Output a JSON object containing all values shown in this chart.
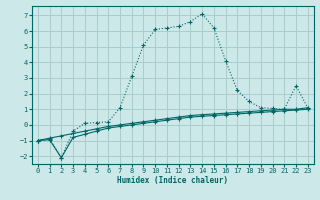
{
  "xlabel": "Humidex (Indice chaleur)",
  "background_color": "#cce8e8",
  "grid_color": "#aacccc",
  "line_color": "#006666",
  "xlim": [
    -0.5,
    23.5
  ],
  "ylim": [
    -2.5,
    7.6
  ],
  "xticks": [
    0,
    1,
    2,
    3,
    4,
    5,
    6,
    7,
    8,
    9,
    10,
    11,
    12,
    13,
    14,
    15,
    16,
    17,
    18,
    19,
    20,
    21,
    22,
    23
  ],
  "yticks": [
    -2,
    -1,
    0,
    1,
    2,
    3,
    4,
    5,
    6,
    7
  ],
  "line1_x": [
    0,
    1,
    2,
    3,
    4,
    5,
    6,
    7,
    8,
    9,
    10,
    11,
    12,
    13,
    14,
    15,
    16,
    17,
    18,
    19,
    20,
    21,
    22,
    23
  ],
  "line1_y": [
    -1.0,
    -0.9,
    -2.1,
    -0.4,
    0.1,
    0.15,
    0.2,
    1.1,
    3.1,
    5.1,
    6.1,
    6.2,
    6.3,
    6.6,
    7.1,
    6.2,
    4.1,
    2.2,
    1.5,
    1.1,
    1.05,
    1.0,
    2.5,
    1.1
  ],
  "line2_x": [
    0,
    1,
    2,
    3,
    4,
    5,
    6,
    7,
    8,
    9,
    10,
    11,
    12,
    13,
    14,
    15,
    16,
    17,
    18,
    19,
    20,
    21,
    22,
    23
  ],
  "line2_y": [
    -1.0,
    -0.85,
    -0.7,
    -0.55,
    -0.4,
    -0.25,
    -0.1,
    0.0,
    0.1,
    0.2,
    0.3,
    0.4,
    0.5,
    0.6,
    0.65,
    0.7,
    0.75,
    0.8,
    0.85,
    0.9,
    0.95,
    1.0,
    1.0,
    1.1
  ],
  "line3_x": [
    0,
    1,
    2,
    3,
    4,
    5,
    6,
    7,
    8,
    9,
    10,
    11,
    12,
    13,
    14,
    15,
    16,
    17,
    18,
    19,
    20,
    21,
    22,
    23
  ],
  "line3_y": [
    -1.0,
    -0.95,
    -2.1,
    -0.8,
    -0.6,
    -0.4,
    -0.2,
    -0.1,
    0.0,
    0.1,
    0.2,
    0.3,
    0.4,
    0.5,
    0.55,
    0.6,
    0.65,
    0.7,
    0.75,
    0.8,
    0.85,
    0.9,
    0.95,
    1.0
  ]
}
